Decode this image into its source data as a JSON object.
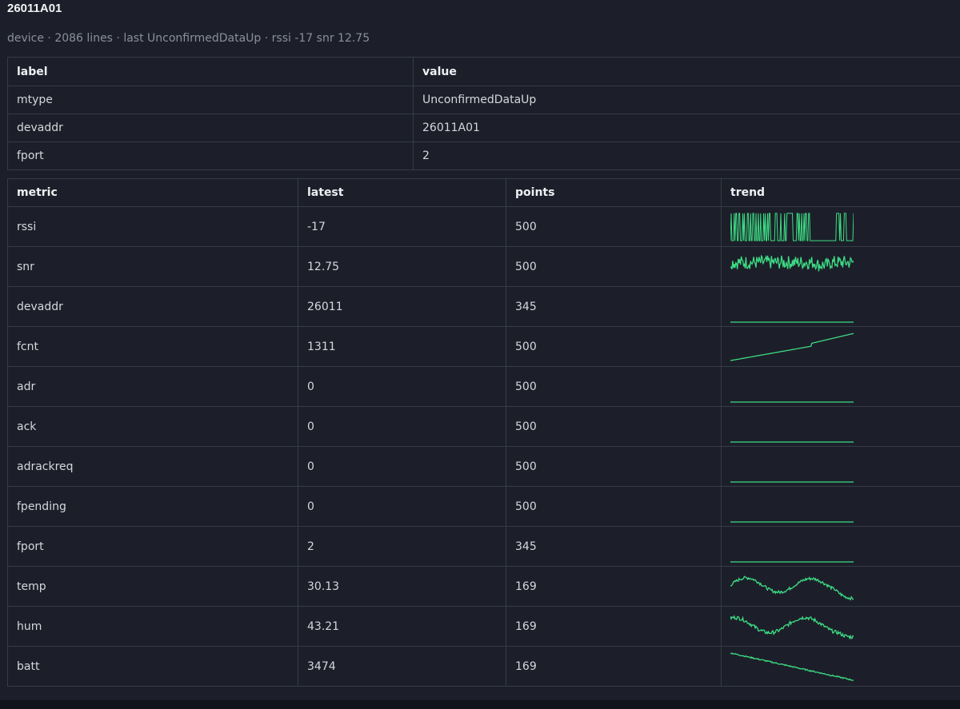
{
  "header": {
    "title": "26011A01",
    "subtitle": "device · 2086 lines · last UnconfirmedDataUp · rssi -17 snr 12.75"
  },
  "info_table": {
    "columns": [
      "label",
      "value"
    ],
    "rows": [
      {
        "label": "mtype",
        "value": "UnconfirmedDataUp"
      },
      {
        "label": "devaddr",
        "value": "26011A01"
      },
      {
        "label": "fport",
        "value": "2"
      }
    ]
  },
  "metrics_table": {
    "columns": [
      "metric",
      "latest",
      "points",
      "trend"
    ],
    "rows": [
      {
        "metric": "rssi",
        "latest": "-17",
        "points": "500"
      },
      {
        "metric": "snr",
        "latest": "12.75",
        "points": "500"
      },
      {
        "metric": "devaddr",
        "latest": "26011",
        "points": "345"
      },
      {
        "metric": "fcnt",
        "latest": "1311",
        "points": "500"
      },
      {
        "metric": "adr",
        "latest": "0",
        "points": "500"
      },
      {
        "metric": "ack",
        "latest": "0",
        "points": "500"
      },
      {
        "metric": "adrackreq",
        "latest": "0",
        "points": "500"
      },
      {
        "metric": "fpending",
        "latest": "0",
        "points": "500"
      },
      {
        "metric": "fport",
        "latest": "2",
        "points": "345"
      },
      {
        "metric": "temp",
        "latest": "30.13",
        "points": "169"
      },
      {
        "metric": "hum",
        "latest": "43.21",
        "points": "169"
      },
      {
        "metric": "batt",
        "latest": "3474",
        "points": "169"
      }
    ]
  },
  "colors": {
    "background": "#1c1f29",
    "border": "#373b47",
    "sparkline": "#3ddc84",
    "muted_text": "#8b8f99"
  }
}
